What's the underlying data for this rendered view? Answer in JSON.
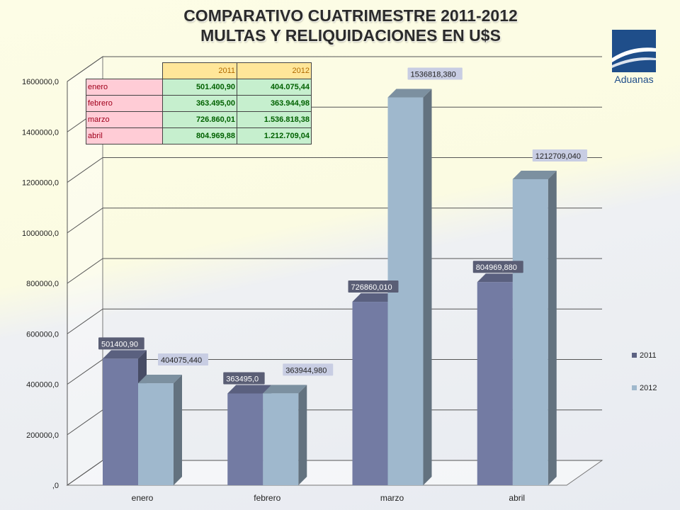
{
  "title": {
    "line1": "COMPARATIVO CUATRIMESTRE 2011-2012",
    "line2": "MULTAS Y RELIQUIDACIONES EN U$S"
  },
  "logo": {
    "text": "Aduanas",
    "color": "#1f4e8a"
  },
  "table": {
    "headers": [
      "2011",
      "2012"
    ],
    "rows": [
      {
        "label": "enero",
        "values": [
          "501.400,90",
          "404.075,44"
        ]
      },
      {
        "label": "febrero",
        "values": [
          "363.495,00",
          "363.944,98"
        ]
      },
      {
        "label": "marzo",
        "values": [
          "726.860,01",
          "1.536.818,38"
        ]
      },
      {
        "label": "abril",
        "values": [
          "804.969,88",
          "1.212.709,04"
        ]
      }
    ]
  },
  "chart_data": {
    "type": "bar",
    "categories": [
      "enero",
      "febrero",
      "marzo",
      "abril"
    ],
    "series": [
      {
        "name": "2011",
        "color": "#737ba3",
        "values": [
          501400.9,
          363495.0,
          726860.01,
          804969.88
        ],
        "labels": [
          "501400,90",
          "363495,0",
          "726860,010",
          "804969,880"
        ]
      },
      {
        "name": "2012",
        "color": "#9fb8cd",
        "values": [
          404075.44,
          363944.98,
          1536818.38,
          1212709.04
        ],
        "labels": [
          "404075,440",
          "363944,980",
          "1536818,380",
          "1212709,040"
        ]
      }
    ],
    "ylim": [
      0,
      1600000
    ],
    "yticks": [
      0,
      200000,
      400000,
      600000,
      800000,
      1000000,
      1200000,
      1400000,
      1600000
    ],
    "ytick_labels": [
      ",0",
      "200000,0",
      "400000,0",
      "600000,0",
      "800000,0",
      "1000000,0",
      "1200000,0",
      "1400000,0",
      "1600000,0"
    ],
    "grid": true,
    "legend_position": "right",
    "style": "3d-clustered-column"
  }
}
